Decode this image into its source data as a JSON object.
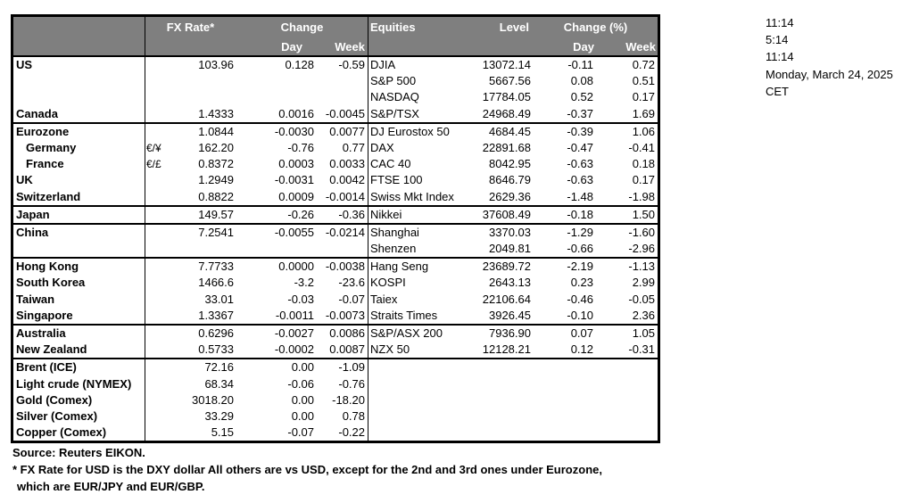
{
  "colors": {
    "header_bg": "#7f7f7f",
    "header_text": "#ffffff",
    "border": "#000000"
  },
  "table": {
    "header": {
      "fx_rate": "FX Rate*",
      "change": "Change",
      "day": "Day",
      "week": "Week",
      "equities": "Equities",
      "level": "Level",
      "change_pct": "Change (%)"
    },
    "sections": [
      {
        "rows": [
          {
            "region": "US",
            "pair": "",
            "fx_rate": "103.96",
            "fx_day": "0.128",
            "fx_week": "-0.59",
            "equity": "DJIA",
            "level": "13072.14",
            "eq_day": "-0.11",
            "eq_week": "0.72"
          },
          {
            "region": "",
            "pair": "",
            "fx_rate": "",
            "fx_day": "",
            "fx_week": "",
            "equity": "S&P 500",
            "level": "5667.56",
            "eq_day": "0.08",
            "eq_week": "0.51"
          },
          {
            "region": "",
            "pair": "",
            "fx_rate": "",
            "fx_day": "",
            "fx_week": "",
            "equity": "NASDAQ",
            "level": "17784.05",
            "eq_day": "0.52",
            "eq_week": "0.17"
          },
          {
            "region": "Canada",
            "pair": "",
            "fx_rate": "1.4333",
            "fx_day": "0.0016",
            "fx_week": "-0.0045",
            "equity": "S&P/TSX",
            "level": "24968.49",
            "eq_day": "-0.37",
            "eq_week": "1.69"
          }
        ]
      },
      {
        "rows": [
          {
            "region": "Eurozone",
            "pair": "",
            "fx_rate": "1.0844",
            "fx_day": "-0.0030",
            "fx_week": "0.0077",
            "equity": "DJ Eurostox 50",
            "level": "4684.45",
            "eq_day": "-0.39",
            "eq_week": "1.06"
          },
          {
            "region": "Germany",
            "indent": true,
            "pair": "€/¥",
            "fx_rate": "162.20",
            "fx_day": "-0.76",
            "fx_week": "0.77",
            "equity": "DAX",
            "level": "22891.68",
            "eq_day": "-0.47",
            "eq_week": "-0.41"
          },
          {
            "region": "France",
            "indent": true,
            "pair": "€/£",
            "fx_rate": "0.8372",
            "fx_day": "0.0003",
            "fx_week": "0.0033",
            "equity": "CAC 40",
            "level": "8042.95",
            "eq_day": "-0.63",
            "eq_week": "0.18"
          },
          {
            "region": "UK",
            "pair": "",
            "fx_rate": "1.2949",
            "fx_day": "-0.0031",
            "fx_week": "0.0042",
            "equity": "FTSE 100",
            "level": "8646.79",
            "eq_day": "-0.63",
            "eq_week": "0.17"
          },
          {
            "region": "Switzerland",
            "pair": "",
            "fx_rate": "0.8822",
            "fx_day": "0.0009",
            "fx_week": "-0.0014",
            "equity": "Swiss Mkt Index",
            "level": "2629.36",
            "eq_day": "-1.48",
            "eq_week": "-1.98"
          }
        ]
      },
      {
        "rows": [
          {
            "region": "Japan",
            "pair": "",
            "fx_rate": "149.57",
            "fx_day": "-0.26",
            "fx_week": "-0.36",
            "equity": "Nikkei",
            "level": "37608.49",
            "eq_day": "-0.18",
            "eq_week": "1.50"
          }
        ]
      },
      {
        "rows": [
          {
            "region": "China",
            "pair": "",
            "fx_rate": "7.2541",
            "fx_day": "-0.0055",
            "fx_week": "-0.0214",
            "equity": "Shanghai",
            "level": "3370.03",
            "eq_day": "-1.29",
            "eq_week": "-1.60"
          },
          {
            "region": "",
            "pair": "",
            "fx_rate": "",
            "fx_day": "",
            "fx_week": "",
            "equity": "Shenzen",
            "level": "2049.81",
            "eq_day": "-0.66",
            "eq_week": "-2.96"
          }
        ]
      },
      {
        "rows": [
          {
            "region": "Hong Kong",
            "pair": "",
            "fx_rate": "7.7733",
            "fx_day": "0.0000",
            "fx_week": "-0.0038",
            "equity": "Hang Seng",
            "level": "23689.72",
            "eq_day": "-2.19",
            "eq_week": "-1.13"
          },
          {
            "region": "South Korea",
            "pair": "",
            "fx_rate": "1466.6",
            "fx_day": "-3.2",
            "fx_week": "-23.6",
            "equity": "KOSPI",
            "level": "2643.13",
            "eq_day": "0.23",
            "eq_week": "2.99"
          },
          {
            "region": "Taiwan",
            "pair": "",
            "fx_rate": "33.01",
            "fx_day": "-0.03",
            "fx_week": "-0.07",
            "equity": "Taiex",
            "level": "22106.64",
            "eq_day": "-0.46",
            "eq_week": "-0.05"
          },
          {
            "region": "Singapore",
            "pair": "",
            "fx_rate": "1.3367",
            "fx_day": "-0.0011",
            "fx_week": "-0.0073",
            "equity": "Straits Times",
            "level": "3926.45",
            "eq_day": "-0.10",
            "eq_week": "2.36"
          }
        ]
      },
      {
        "rows": [
          {
            "region": "Australia",
            "pair": "",
            "fx_rate": "0.6296",
            "fx_day": "-0.0027",
            "fx_week": "0.0086",
            "equity": "S&P/ASX  200",
            "level": "7936.90",
            "eq_day": "0.07",
            "eq_week": "1.05"
          },
          {
            "region": "New Zealand",
            "pair": "",
            "fx_rate": "0.5733",
            "fx_day": "-0.0002",
            "fx_week": "0.0087",
            "equity": "NZX 50",
            "level": "12128.21",
            "eq_day": "0.12",
            "eq_week": "-0.31"
          }
        ]
      },
      {
        "rows": [
          {
            "region": "Brent (ICE)",
            "pair": "",
            "fx_rate": "72.16",
            "fx_day": "0.00",
            "fx_week": "-1.09",
            "equity": "",
            "level": "",
            "eq_day": "",
            "eq_week": ""
          },
          {
            "region": "Light crude (NYMEX)",
            "pair": "",
            "fx_rate": "68.34",
            "fx_day": "-0.06",
            "fx_week": "-0.76",
            "equity": "",
            "level": "",
            "eq_day": "",
            "eq_week": ""
          },
          {
            "region": "Gold (Comex)",
            "pair": "",
            "fx_rate": "3018.20",
            "fx_day": "0.00",
            "fx_week": "-18.20",
            "equity": "",
            "level": "",
            "eq_day": "",
            "eq_week": ""
          },
          {
            "region": "Silver (Comex)",
            "pair": "",
            "fx_rate": "33.29",
            "fx_day": "0.00",
            "fx_week": "0.78",
            "equity": "",
            "level": "",
            "eq_day": "",
            "eq_week": ""
          },
          {
            "region": "Copper (Comex)",
            "pair": "",
            "fx_rate": "5.15",
            "fx_day": "-0.07",
            "fx_week": "-0.22",
            "equity": "",
            "level": "",
            "eq_day": "",
            "eq_week": ""
          }
        ]
      }
    ]
  },
  "timestamp_panel": {
    "lines": [
      "11:14",
      "5:14",
      "11:14",
      "Monday, March 24, 2025",
      "CET"
    ]
  },
  "footnotes": {
    "source": "Source:  Reuters EIKON.",
    "fx_note_line1": "* FX Rate for USD is the DXY dollar  All others are vs USD, except for the 2nd and 3rd ones under Eurozone,",
    "fx_note_line2": "which are EUR/JPY and EUR/GBP."
  }
}
